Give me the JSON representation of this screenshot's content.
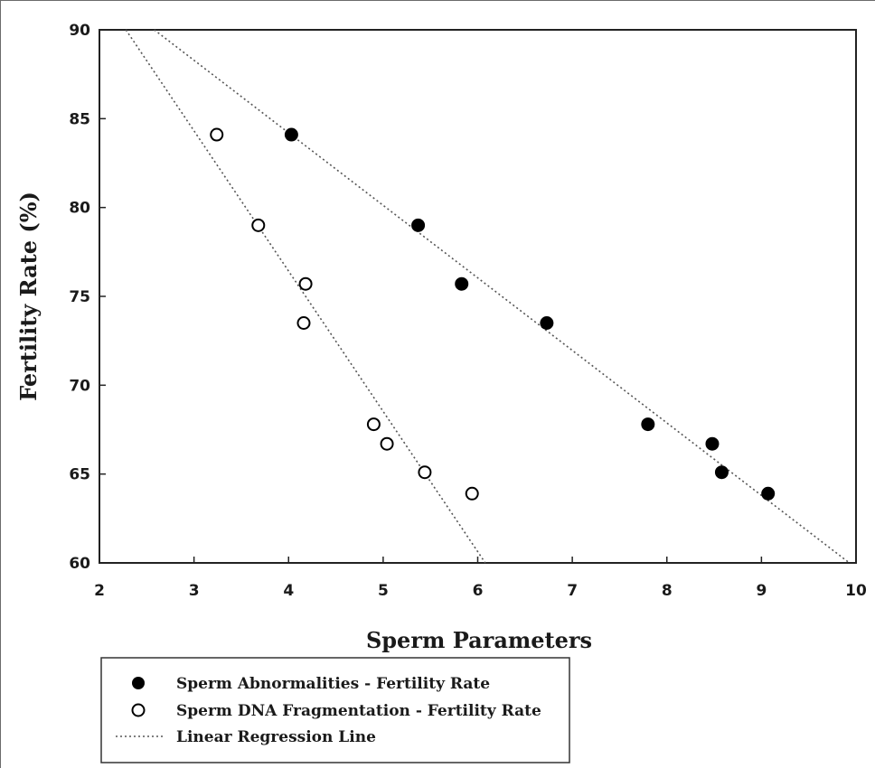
{
  "chart_data": {
    "type": "scatter",
    "title": "",
    "xlabel": "Sperm Parameters",
    "ylabel": "Fertility Rate (%)",
    "xlim": [
      2,
      10
    ],
    "ylim": [
      60,
      90
    ],
    "xticks": [
      "2",
      "3",
      "4",
      "5",
      "6",
      "7",
      "8",
      "9",
      "10"
    ],
    "yticks": [
      "60",
      "65",
      "70",
      "75",
      "80",
      "85",
      "90"
    ],
    "grid": false,
    "legend_position": "bottom-left, below plot",
    "series": [
      {
        "name": "Sperm Abnormalities - Fertility Rate",
        "marker": "filled-circle",
        "color": "#000000",
        "points": [
          {
            "x": 4.03,
            "y": 84.1
          },
          {
            "x": 5.37,
            "y": 79.0
          },
          {
            "x": 5.83,
            "y": 75.7
          },
          {
            "x": 6.73,
            "y": 73.5
          },
          {
            "x": 7.8,
            "y": 67.8
          },
          {
            "x": 8.48,
            "y": 66.7
          },
          {
            "x": 8.58,
            "y": 65.1
          },
          {
            "x": 9.07,
            "y": 63.9
          }
        ],
        "regression": {
          "x": [
            2.58,
            9.93
          ],
          "y": [
            90,
            60
          ]
        }
      },
      {
        "name": "Sperm DNA Fragmentation - Fertility Rate",
        "marker": "open-circle",
        "color": "#000000",
        "points": [
          {
            "x": 3.24,
            "y": 84.1
          },
          {
            "x": 3.68,
            "y": 79.0
          },
          {
            "x": 4.18,
            "y": 75.7
          },
          {
            "x": 4.16,
            "y": 73.5
          },
          {
            "x": 4.9,
            "y": 67.8
          },
          {
            "x": 5.04,
            "y": 66.7
          },
          {
            "x": 5.44,
            "y": 65.1
          },
          {
            "x": 5.94,
            "y": 63.9
          }
        ],
        "regression": {
          "x": [
            2.28,
            6.08
          ],
          "y": [
            90,
            60
          ]
        }
      }
    ],
    "legend": [
      {
        "label": "Sperm Abnormalities - Fertility Rate",
        "symbol": "filled-circle"
      },
      {
        "label": "Sperm DNA Fragmentation - Fertility Rate",
        "symbol": "open-circle"
      },
      {
        "label": "Linear Regression Line",
        "symbol": "dotted-line"
      }
    ]
  }
}
